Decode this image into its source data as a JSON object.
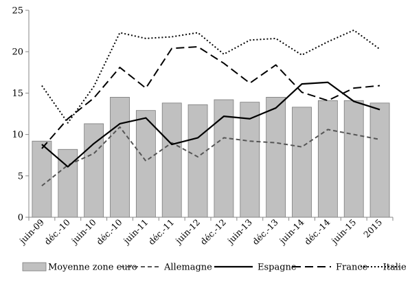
{
  "chart_data": {
    "type": "bar",
    "categories": [
      "juin-09",
      "déc.-10",
      "juin-10",
      "déc.-10",
      "juin-11",
      "déc.-11",
      "juin-12",
      "déc.-12",
      "juin-13",
      "déc.-13",
      "juin-14",
      "déc.-14",
      "juin-15",
      "2015"
    ],
    "ylim": [
      0,
      25
    ],
    "yticks": [
      0,
      5,
      10,
      15,
      20,
      25
    ],
    "grid": false,
    "legend_position": "bottom",
    "series": [
      {
        "name": "Moyenne zone euro",
        "kind": "bar",
        "color": "#c0c0c0",
        "values": [
          9.2,
          8.2,
          11.3,
          14.5,
          12.9,
          13.8,
          13.6,
          14.2,
          13.9,
          14.5,
          13.3,
          14.1,
          14.1,
          13.8
        ]
      },
      {
        "name": "Allemagne",
        "kind": "line",
        "style": "dashed-short",
        "color": "#555555",
        "values": [
          3.8,
          6.3,
          7.7,
          10.9,
          6.8,
          9.0,
          7.3,
          9.6,
          9.2,
          9.0,
          8.5,
          10.6,
          10.0,
          9.4
        ]
      },
      {
        "name": "Espagne",
        "kind": "line",
        "style": "solid",
        "color": "#000000",
        "values": [
          8.8,
          6.1,
          8.9,
          11.3,
          12.0,
          8.8,
          9.6,
          12.2,
          11.9,
          13.2,
          16.1,
          16.3,
          14.0,
          13.0
        ]
      },
      {
        "name": "France",
        "kind": "line",
        "style": "dashed-long",
        "color": "#000000",
        "values": [
          8.3,
          11.9,
          14.4,
          18.1,
          15.6,
          20.4,
          20.6,
          18.6,
          16.2,
          18.4,
          15.1,
          14.1,
          15.6,
          15.9
        ]
      },
      {
        "name": "Italie",
        "kind": "line",
        "style": "dotted",
        "color": "#000000",
        "values": [
          15.9,
          11.4,
          15.8,
          22.3,
          21.6,
          21.8,
          22.3,
          19.7,
          21.4,
          21.6,
          19.6,
          21.2,
          22.6,
          20.3
        ]
      }
    ]
  }
}
